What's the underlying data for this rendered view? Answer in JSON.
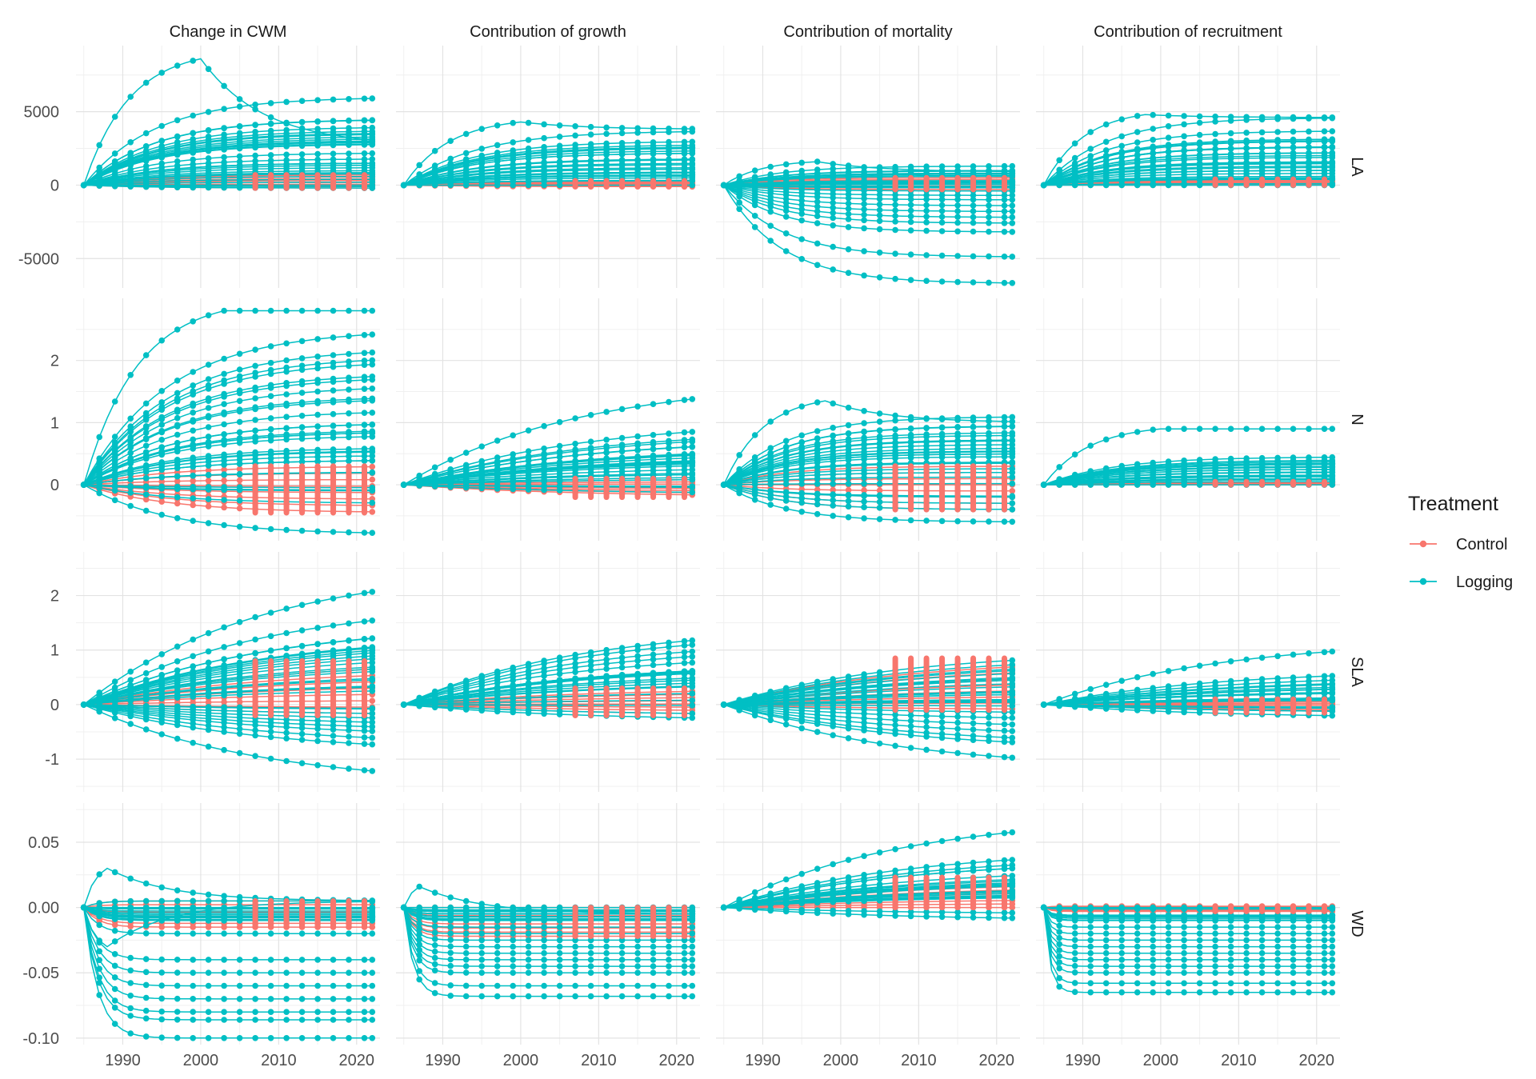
{
  "chart_data": {
    "type": "line",
    "facet_columns": [
      "Change in CWM",
      "Contribution of growth",
      "Contribution of mortality",
      "Contribution of recruitment"
    ],
    "facet_rows": [
      "LA",
      "N",
      "SLA",
      "WD"
    ],
    "x_ticks": [
      1990,
      2000,
      2010,
      2020
    ],
    "x_range": [
      1984,
      2023
    ],
    "legend": {
      "title": "Treatment",
      "placement": "right",
      "entries": [
        {
          "name": "Control",
          "color": "#F8766D"
        },
        {
          "name": "Logging",
          "color": "#00BFC4"
        }
      ]
    },
    "rows": [
      {
        "y_range": [
          -7000,
          9500
        ],
        "y_ticks": [
          -5000,
          0,
          5000
        ],
        "y_tick_labels": [
          "-5000",
          "0",
          "5000"
        ],
        "panels": [
          {
            "logging_upper": [
              8600,
              6000,
              4500,
              3500,
              2800,
              2200,
              1800,
              1500,
              1200,
              1000,
              800,
              600,
              400,
              200
            ],
            "logging_lower": [
              -200,
              -100,
              0
            ],
            "peak_year": 2000,
            "end_upper": 2700,
            "control_range": [
              -200,
              700
            ]
          },
          {
            "logging_upper": [
              4300,
              3700,
              3000,
              2600,
              2200,
              1800,
              1500,
              1200,
              900,
              700,
              500,
              300
            ],
            "logging_lower": [
              0
            ],
            "peak_year": 2000,
            "end_upper": 3800,
            "control_range": [
              -100,
              300
            ]
          },
          {
            "logging_upper": [
              1600,
              1300,
              1000,
              800,
              600
            ],
            "logging_lower": [
              -6700,
              -4900,
              -3200,
              -2600,
              -2200,
              -1800,
              -1400,
              -1000,
              -700,
              -400
            ],
            "peak_year": 1997,
            "end_upper": 900,
            "control_range": [
              -300,
              500
            ]
          },
          {
            "logging_upper": [
              4800,
              4600,
              3700,
              3000,
              2600,
              2200,
              1900,
              1600,
              1300,
              1000,
              800,
              600,
              400
            ],
            "logging_lower": [
              0,
              100
            ],
            "peak_year": 1998,
            "end_upper": 4600,
            "control_range": [
              0,
              400
            ]
          }
        ]
      },
      {
        "y_range": [
          -0.9,
          3.0
        ],
        "y_ticks": [
          0,
          1,
          2
        ],
        "y_tick_labels": [
          "0",
          "1",
          "2"
        ],
        "panels": [
          {
            "logging_upper": [
              2.8,
              2.5,
              2.2,
              2.0,
              1.8,
              1.6,
              1.4,
              1.2,
              1.0,
              0.8,
              0.6,
              0.4,
              0.2
            ],
            "logging_lower": [
              -0.8,
              -0.3,
              -0.1
            ],
            "peak_year": 2003,
            "end_upper": 2.8,
            "control_range": [
              -0.45,
              0.3
            ]
          },
          {
            "logging_upper": [
              1.7,
              1.05,
              0.9,
              0.75,
              0.6,
              0.45,
              0.3,
              0.2,
              0.1
            ],
            "logging_lower": [
              -0.15,
              -0.05
            ],
            "peak_year": 2022,
            "end_upper": 1.7,
            "control_range": [
              -0.2,
              0.1
            ]
          },
          {
            "logging_upper": [
              1.35,
              1.1,
              0.95,
              0.8,
              0.65,
              0.5,
              0.35,
              0.2
            ],
            "logging_lower": [
              -0.6,
              -0.4,
              -0.3,
              -0.2
            ],
            "peak_year": 1998,
            "end_upper": 1.0,
            "control_range": [
              -0.4,
              0.3
            ]
          },
          {
            "logging_upper": [
              0.9,
              0.45,
              0.4,
              0.35,
              0.3,
              0.25,
              0.2,
              0.15,
              0.1
            ],
            "logging_lower": [
              0,
              0.05
            ],
            "peak_year": 2000,
            "end_upper": 0.9,
            "control_range": [
              0,
              0.05
            ]
          }
        ]
      },
      {
        "y_range": [
          -1.6,
          2.8
        ],
        "y_ticks": [
          -1,
          0,
          1,
          2
        ],
        "y_tick_labels": [
          "-1",
          "0",
          "1",
          "2"
        ],
        "panels": [
          {
            "logging_upper": [
              2.55,
              1.9,
              1.5,
              1.3,
              1.1,
              0.95,
              0.8
            ],
            "logging_lower": [
              -1.5,
              -0.9,
              -0.75,
              -0.6,
              -0.5,
              -0.4,
              -0.3,
              -0.2,
              -0.1
            ],
            "peak_year": 2022,
            "end_upper": 2.55,
            "control_range": [
              -0.2,
              0.8
            ]
          },
          {
            "logging_upper": [
              1.45,
              1.35,
              1.2,
              0.95,
              0.7,
              0.55,
              0.4,
              0.25
            ],
            "logging_lower": [
              -0.3,
              -0.2
            ],
            "peak_year": 2022,
            "end_upper": 1.45,
            "control_range": [
              -0.2,
              0.3
            ]
          },
          {
            "logging_upper": [
              1.0,
              0.9,
              0.8,
              0.7,
              0.55,
              0.4
            ],
            "logging_lower": [
              -1.2,
              -0.85,
              -0.75,
              -0.6,
              -0.45,
              -0.3
            ],
            "peak_year": 2022,
            "end_upper": 1.0,
            "control_range": [
              -0.1,
              0.85
            ]
          },
          {
            "logging_upper": [
              1.2,
              0.65,
              0.55,
              0.45,
              0.35,
              0.25,
              0.15
            ],
            "logging_lower": [
              -0.25,
              -0.15
            ],
            "peak_year": 2022,
            "end_upper": 1.2,
            "control_range": [
              -0.15,
              0.1
            ]
          }
        ]
      },
      {
        "y_range": [
          -0.105,
          0.08
        ],
        "y_ticks": [
          -0.1,
          -0.05,
          0.0,
          0.05
        ],
        "y_tick_labels": [
          "-0.10",
          "-0.05",
          "0.00",
          "0.05"
        ],
        "panels": [
          {
            "logging_upper": [
              0.03,
              0.005,
              0.0
            ],
            "logging_lower": [
              -0.1,
              -0.086,
              -0.08,
              -0.07,
              -0.06,
              -0.05,
              -0.04,
              -0.03,
              -0.02,
              -0.01
            ],
            "peak_year": 1988,
            "end_upper": 0.005,
            "control_range": [
              -0.015,
              0.005
            ]
          },
          {
            "logging_upper": [
              0.016,
              0.0
            ],
            "logging_lower": [
              -0.068,
              -0.06,
              -0.05,
              -0.045,
              -0.04,
              -0.035,
              -0.03,
              -0.025,
              -0.02,
              -0.015,
              -0.01
            ],
            "peak_year": 1987,
            "end_upper": -0.005,
            "control_range": [
              -0.022,
              0.0
            ]
          },
          {
            "logging_upper": [
              0.071,
              0.045,
              0.04,
              0.03,
              0.025,
              0.02,
              0.015,
              0.01
            ],
            "logging_lower": [
              -0.01,
              -0.005
            ],
            "peak_year": 2022,
            "end_upper": 0.071,
            "control_range": [
              0.0,
              0.023
            ]
          },
          {
            "logging_upper": [
              0.0
            ],
            "logging_lower": [
              -0.065,
              -0.058,
              -0.05,
              -0.045,
              -0.04,
              -0.035,
              -0.03,
              -0.025,
              -0.02,
              -0.015,
              -0.01
            ],
            "peak_year": 1985,
            "end_upper": 0.0,
            "control_range": [
              -0.003,
              0.001
            ]
          }
        ]
      }
    ]
  }
}
